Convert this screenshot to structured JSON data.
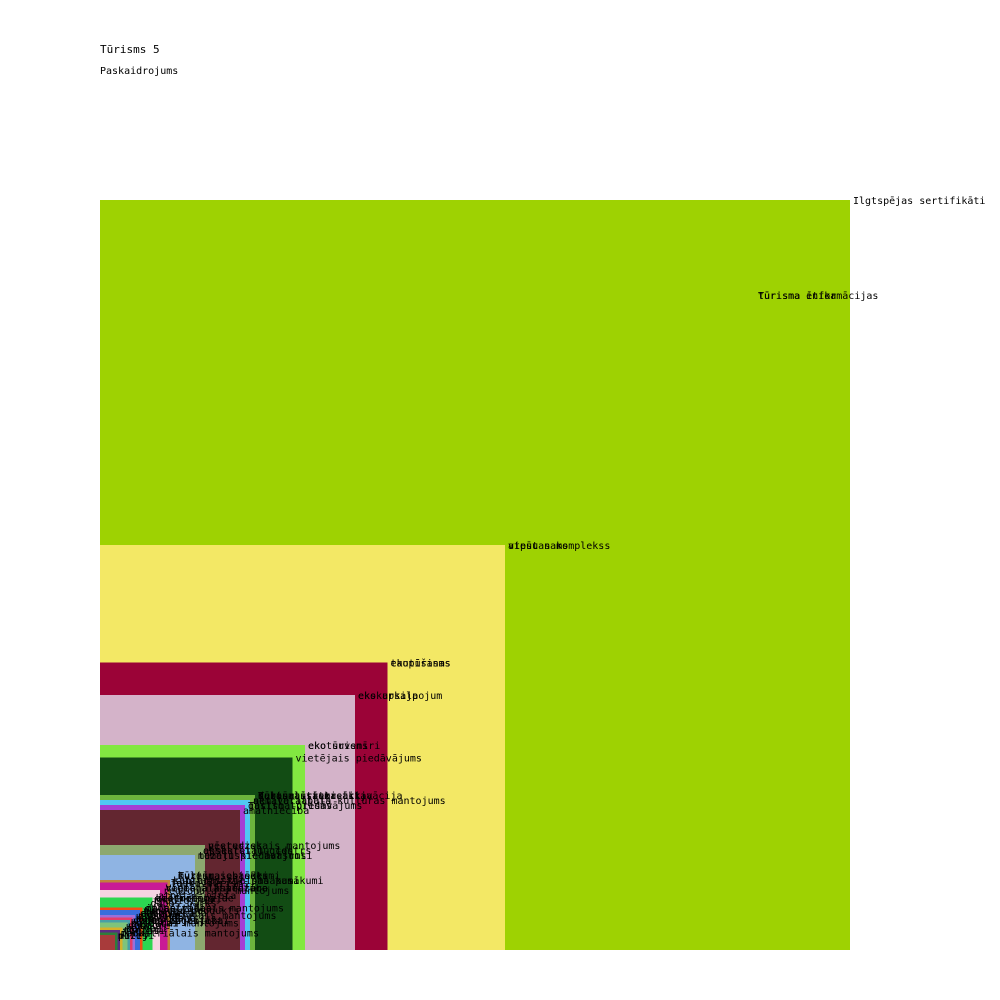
{
  "chart_data": {
    "type": "nested-square",
    "title": "Tūrisms 5",
    "subtitle": "Paskaidrojums",
    "scale_max": 3.0,
    "items": [
      {
        "label": "Ilgtspējas sertifikāti",
        "value": 3.0,
        "color": "#9ed202"
      },
      {
        "label": "tūrisma informācijas",
        "value": 2.62,
        "color": "#9ed202"
      },
      {
        "label": "Tūrisma ētika",
        "value": 2.62,
        "color": "#9ed202"
      },
      {
        "label": "atpūtas komplekss",
        "value": 1.62,
        "color": "#f3e865"
      },
      {
        "label": "viesu nams",
        "value": 1.62,
        "color": "#f3e865"
      },
      {
        "label": "taupīšanas",
        "value": 1.15,
        "color": "#9b0337"
      },
      {
        "label": "ekotūrisms",
        "value": 1.15,
        "color": "#9b0337"
      },
      {
        "label": "eko apkalpojum",
        "value": 1.02,
        "color": "#d4b3c9"
      },
      {
        "label": "ekskursija",
        "value": 1.02,
        "color": "#d4b3c9"
      },
      {
        "label": "eko suvenīri",
        "value": 0.82,
        "color": "#82e841"
      },
      {
        "label": "ekotūrisms",
        "value": 0.82,
        "color": "#82e841"
      },
      {
        "label": "vietējais piedāvājums",
        "value": 0.77,
        "color": "#124c14"
      },
      {
        "label": "Kultūras rekreācija",
        "value": 0.62,
        "color": "#6db53d"
      },
      {
        "label": "Tūrisma statistika",
        "value": 0.62,
        "color": "#6db53d"
      },
      {
        "label": "sezonalitāte",
        "value": 0.62,
        "color": "#6db53d"
      },
      {
        "label": "dabas tūrisma aktivācija",
        "value": 0.62,
        "color": "#6db53d"
      },
      {
        "label": "nemateriālais kultūras mantojums",
        "value": 0.6,
        "color": "#51c7f3"
      },
      {
        "label": "aktīvā atpūta",
        "value": 0.6,
        "color": "#51c7f3"
      },
      {
        "label": "gastro tūrisms",
        "value": 0.58,
        "color": "#a53fd4"
      },
      {
        "label": "Tūrisma piedāvājums",
        "value": 0.58,
        "color": "#a53fd4"
      },
      {
        "label": "amatniecība",
        "value": 0.56,
        "color": "#632630"
      },
      {
        "label": "vēsturiskais mantojums",
        "value": 0.42,
        "color": "#8da86f"
      },
      {
        "label": "pieredzes",
        "value": 0.42,
        "color": "#8da86f"
      },
      {
        "label": "ekskursiju gids",
        "value": 0.4,
        "color": "#8da86f"
      },
      {
        "label": "apmeklētāju centrs",
        "value": 0.4,
        "color": "#8da86f"
      },
      {
        "label": "muzeju piedāvājums",
        "value": 0.38,
        "color": "#8fb4e3"
      },
      {
        "label": "tematiskie maršruti",
        "value": 0.38,
        "color": "#8fb4e3"
      },
      {
        "label": "kultūras pasākumi",
        "value": 0.3,
        "color": "#8fb4e3"
      },
      {
        "label": "Tūrisma objekti",
        "value": 0.3,
        "color": "#8fb4e3"
      },
      {
        "label": "muzeju iestādes",
        "value": 0.3,
        "color": "#8fb4e3"
      },
      {
        "label": "sabiedriskie pasākumi",
        "value": 0.28,
        "color": "#c0823c"
      },
      {
        "label": "kultūras tūrisma pasākumi",
        "value": 0.28,
        "color": "#c0823c"
      },
      {
        "label": "festivāli",
        "value": 0.27,
        "color": "#c91b95"
      },
      {
        "label": "lauku tūrisms",
        "value": 0.27,
        "color": "#c91b95"
      },
      {
        "label": "vietējā kultūra",
        "value": 0.25,
        "color": "#c91b95"
      },
      {
        "label": "Vides aizsardzība",
        "value": 0.25,
        "color": "#c91b95"
      },
      {
        "label": "reģionālā vēsture",
        "value": 0.25,
        "color": "#c91b95"
      },
      {
        "label": "reģionālais mantojums",
        "value": 0.24,
        "color": "#f6d4e2"
      },
      {
        "label": "atpūtas vieta",
        "value": 0.22,
        "color": "#f6d4e2"
      },
      {
        "label": "kultūras vide",
        "value": 0.21,
        "color": "#f6d4e2"
      },
      {
        "label": "viesmīlība",
        "value": 0.21,
        "color": "#f6d4e2"
      },
      {
        "label": "gastronomija",
        "value": 0.21,
        "color": "#2cd651"
      },
      {
        "label": "tradīcijas",
        "value": 0.2,
        "color": "#2cd651"
      },
      {
        "label": "dabas parks",
        "value": 0.19,
        "color": "#2cd651"
      },
      {
        "label": "dabas takas",
        "value": 0.17,
        "color": "#f24c12"
      },
      {
        "label": "pilsētvide",
        "value": 0.17,
        "color": "#f24c12"
      },
      {
        "label": "industriālais mantojums",
        "value": 0.17,
        "color": "#f24c12"
      },
      {
        "label": "ainava",
        "value": 0.16,
        "color": "#f24c12"
      },
      {
        "label": "tūrisma produkts",
        "value": 0.16,
        "color": "#3a6ddc"
      },
      {
        "label": "sabiedrība",
        "value": 0.16,
        "color": "#3a6ddc"
      },
      {
        "label": "ekonomika",
        "value": 0.15,
        "color": "#3a6ddc"
      },
      {
        "label": "saimniecība",
        "value": 0.15,
        "color": "#3a6ddc"
      },
      {
        "label": "piejūra",
        "value": 0.14,
        "color": "#9c6fd9"
      },
      {
        "label": "ceļojumi",
        "value": 0.14,
        "color": "#9c6fd9"
      },
      {
        "label": "industriālais mantojums",
        "value": 0.14,
        "color": "#9c6fd9"
      },
      {
        "label": "nakšņošana",
        "value": 0.13,
        "color": "#e43c6a"
      },
      {
        "label": "kempings",
        "value": 0.13,
        "color": "#e43c6a"
      },
      {
        "label": "dabas objekti",
        "value": 0.12,
        "color": "#48a0a6"
      },
      {
        "label": "vides izglītība",
        "value": 0.12,
        "color": "#48a0a6"
      },
      {
        "label": "vēstures objekti",
        "value": 0.12,
        "color": "#48a0a6"
      },
      {
        "label": "pasākumi",
        "value": 0.11,
        "color": "#48a0a6"
      },
      {
        "label": "kultūras mantojums",
        "value": 0.11,
        "color": "#7ec47c"
      },
      {
        "label": "vēsture",
        "value": 0.1,
        "color": "#7ec47c"
      },
      {
        "label": "daba",
        "value": 0.1,
        "color": "#7ec47c"
      },
      {
        "label": "ceļveži",
        "value": 0.09,
        "color": "#d6b12a"
      },
      {
        "label": "kartes",
        "value": 0.09,
        "color": "#d6b12a"
      },
      {
        "label": "vietas",
        "value": 0.08,
        "color": "#5a2d82"
      },
      {
        "label": "tūristi",
        "value": 0.08,
        "color": "#5a2d82"
      },
      {
        "label": "parki",
        "value": 0.07,
        "color": "#2f7d3a"
      },
      {
        "label": "industriālais mantojums",
        "value": 0.07,
        "color": "#2f7d3a"
      },
      {
        "label": "muzeji",
        "value": 0.06,
        "color": "#a83b3b"
      },
      {
        "label": "pilis",
        "value": 0.06,
        "color": "#a83b3b"
      }
    ]
  }
}
